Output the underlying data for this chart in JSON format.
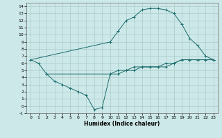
{
  "xlabel": "Humidex (Indice chaleur)",
  "background_color": "#cde8e8",
  "grid_color": "#aacccc",
  "line_color": "#1a6b6b",
  "xlim": [
    -0.5,
    23.5
  ],
  "ylim": [
    -1,
    14.5
  ],
  "xticks": [
    0,
    1,
    2,
    3,
    4,
    5,
    6,
    7,
    8,
    9,
    10,
    11,
    12,
    13,
    14,
    15,
    16,
    17,
    18,
    19,
    20,
    21,
    22,
    23
  ],
  "yticks": [
    -1,
    0,
    1,
    2,
    3,
    4,
    5,
    6,
    7,
    8,
    9,
    10,
    11,
    12,
    13,
    14
  ],
  "line1_x": [
    0,
    1,
    2,
    10,
    11,
    12,
    13,
    14,
    15,
    16,
    17,
    18,
    19,
    20,
    21,
    22,
    23
  ],
  "line1_y": [
    6.5,
    6.0,
    4.5,
    4.5,
    5.0,
    5.0,
    5.5,
    5.5,
    5.5,
    5.5,
    5.5,
    6.0,
    6.5,
    6.5,
    6.5,
    6.5,
    6.5
  ],
  "line2_x": [
    2,
    3,
    4,
    5,
    6,
    7,
    8,
    9,
    10,
    11,
    12,
    13,
    14,
    15,
    16,
    17,
    18,
    19,
    20,
    21,
    22,
    23
  ],
  "line2_y": [
    4.5,
    3.5,
    3.0,
    2.5,
    2.0,
    1.5,
    -0.5,
    -0.2,
    4.5,
    4.5,
    5.0,
    5.0,
    5.5,
    5.5,
    5.5,
    6.0,
    6.0,
    6.5,
    6.5,
    6.5,
    6.5,
    6.5
  ],
  "line3_x": [
    0,
    10,
    11,
    12,
    13,
    14,
    15,
    16,
    17,
    18,
    19,
    20,
    21,
    22,
    23
  ],
  "line3_y": [
    6.5,
    9.0,
    10.5,
    12.0,
    12.5,
    13.5,
    13.7,
    13.7,
    13.5,
    13.0,
    11.5,
    9.5,
    8.5,
    7.0,
    6.5
  ]
}
